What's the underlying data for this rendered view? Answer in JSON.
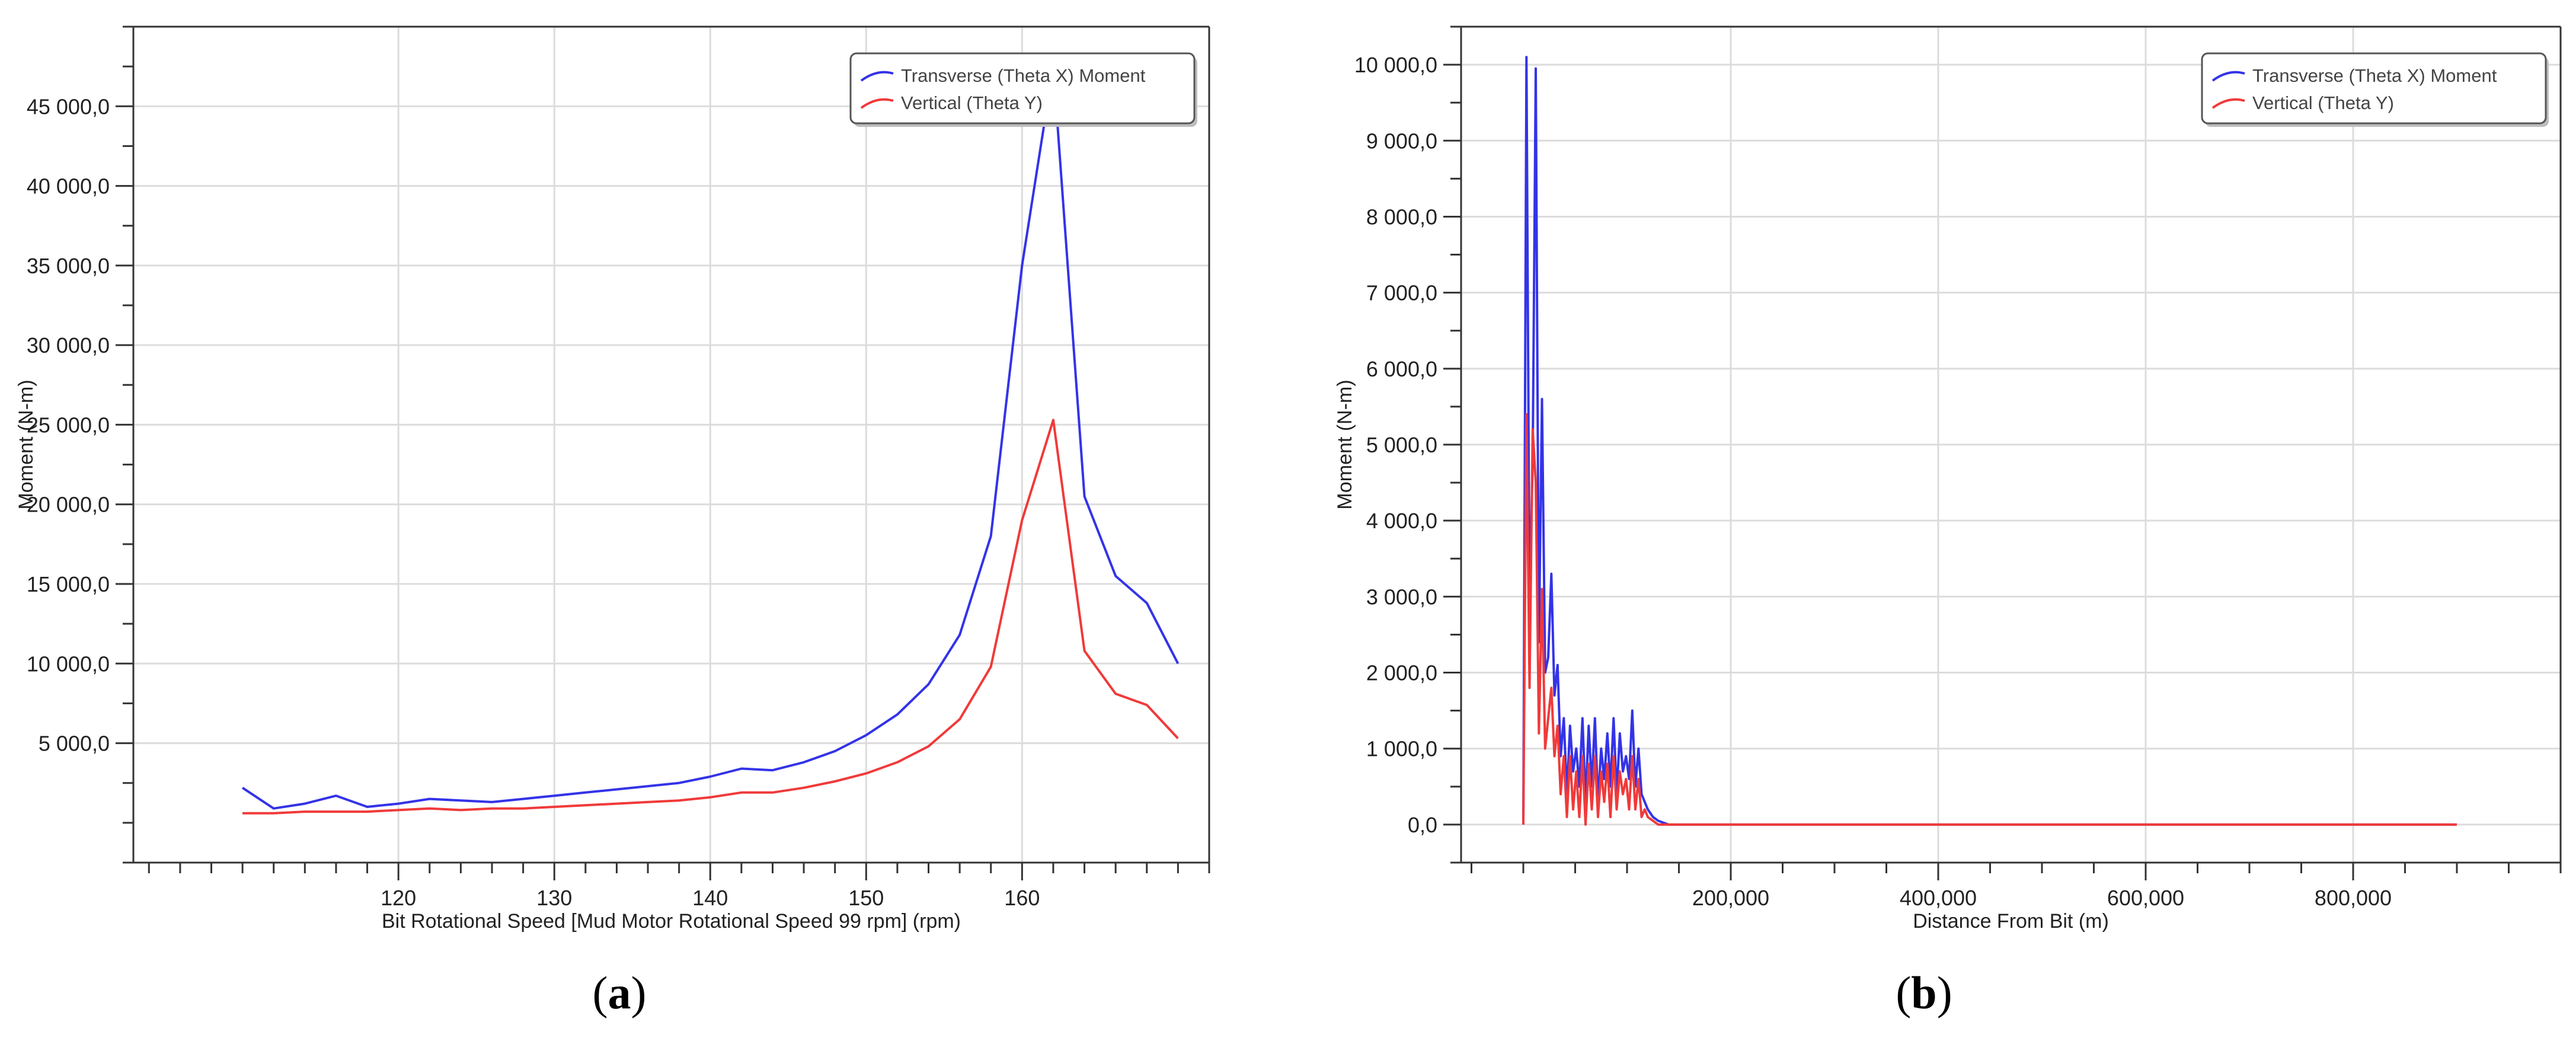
{
  "captions": {
    "a": {
      "open": "(",
      "letter": "a",
      "close": ")"
    },
    "b": {
      "open": "(",
      "letter": "b",
      "close": ")"
    }
  },
  "colors": {
    "transverse": "#3333e8",
    "vertical": "#f03a3a",
    "grid": "#dcdcdc",
    "axis": "#333333",
    "plot_bg": "#ffffff",
    "legend_border": "#555555"
  },
  "chart_data": [
    {
      "type": "line",
      "title": "",
      "xlabel": "Bit Rotational Speed [Mud Motor Rotational Speed 99 rpm] (rpm)",
      "ylabel": "Moment (N-m)",
      "xlim": [
        103,
        172
      ],
      "ylim": [
        -2500,
        50000
      ],
      "x_ticks": [
        120,
        130,
        140,
        150,
        160
      ],
      "x_tick_labels": [
        "120",
        "130",
        "140",
        "150",
        "160"
      ],
      "y_ticks": [
        5000,
        10000,
        15000,
        20000,
        25000,
        30000,
        35000,
        40000,
        45000
      ],
      "y_tick_labels": [
        "5 000,0",
        "10 000,0",
        "15 000,0",
        "20 000,0",
        "25 000,0",
        "30 000,0",
        "35 000,0",
        "40 000,0",
        "45 000,0"
      ],
      "legend_position": "top-right",
      "series": [
        {
          "name": "Transverse (Theta X) Moment",
          "color": "#3333e8",
          "x": [
            110,
            112,
            114,
            116,
            118,
            120,
            122,
            124,
            126,
            128,
            130,
            132,
            134,
            136,
            138,
            140,
            142,
            144,
            146,
            148,
            150,
            152,
            154,
            156,
            158,
            160,
            162,
            164,
            166,
            168,
            170
          ],
          "values": [
            2200,
            900,
            1200,
            1700,
            1000,
            1200,
            1500,
            1400,
            1300,
            1500,
            1700,
            1900,
            2100,
            2300,
            2500,
            2900,
            3400,
            3300,
            3800,
            4500,
            5500,
            6800,
            8700,
            11800,
            18000,
            35000,
            47500,
            20500,
            15500,
            13800,
            10000
          ]
        },
        {
          "name": "Vertical (Theta Y)",
          "color": "#f03a3a",
          "x": [
            110,
            112,
            114,
            116,
            118,
            120,
            122,
            124,
            126,
            128,
            130,
            132,
            134,
            136,
            138,
            140,
            142,
            144,
            146,
            148,
            150,
            152,
            154,
            156,
            158,
            160,
            162,
            164,
            166,
            168,
            170
          ],
          "values": [
            600,
            600,
            700,
            700,
            700,
            800,
            900,
            800,
            900,
            900,
            1000,
            1100,
            1200,
            1300,
            1400,
            1600,
            1900,
            1900,
            2200,
            2600,
            3100,
            3800,
            4800,
            6500,
            9800,
            19000,
            25300,
            10800,
            8100,
            7400,
            5300
          ]
        }
      ]
    },
    {
      "type": "line",
      "title": "",
      "xlabel": "Distance From Bit (m)",
      "ylabel": "Moment (N-m)",
      "xlim": [
        -60000,
        1000000
      ],
      "ylim": [
        -500,
        10500
      ],
      "x_ticks": [
        200000,
        400000,
        600000,
        800000
      ],
      "x_tick_labels": [
        "200,000",
        "400,000",
        "600,000",
        "800,000"
      ],
      "y_ticks": [
        0,
        1000,
        2000,
        3000,
        4000,
        5000,
        6000,
        7000,
        8000,
        9000,
        10000
      ],
      "y_tick_labels": [
        "0,0",
        "1 000,0",
        "2 000,0",
        "3 000,0",
        "4 000,0",
        "5 000,0",
        "6 000,0",
        "7 000,0",
        "8 000,0",
        "9 000,0",
        "10 000,0"
      ],
      "legend_position": "top-right",
      "series": [
        {
          "name": "Transverse (Theta X) Moment",
          "color": "#3333e8",
          "x": [
            0,
            3000,
            6000,
            9000,
            12000,
            15000,
            18000,
            21000,
            24000,
            27000,
            30000,
            33000,
            36000,
            39000,
            42000,
            45000,
            48000,
            51000,
            54000,
            57000,
            60000,
            63000,
            66000,
            69000,
            72000,
            75000,
            78000,
            81000,
            84000,
            87000,
            90000,
            93000,
            96000,
            99000,
            102000,
            105000,
            108000,
            111000,
            114000,
            117000,
            120000,
            125000,
            130000,
            140000,
            150000,
            300000,
            500000,
            700000,
            900000
          ],
          "values": [
            0,
            10100,
            2900,
            4800,
            9950,
            2400,
            5600,
            2000,
            2200,
            3300,
            1700,
            2100,
            900,
            1400,
            400,
            1300,
            700,
            1000,
            500,
            1400,
            300,
            1300,
            500,
            1400,
            300,
            1000,
            600,
            1200,
            500,
            1400,
            400,
            1200,
            700,
            900,
            600,
            1500,
            500,
            1000,
            400,
            300,
            200,
            100,
            50,
            0,
            0,
            0,
            0,
            0,
            0
          ]
        },
        {
          "name": "Vertical (Theta Y)",
          "color": "#f03a3a",
          "x": [
            0,
            3000,
            6000,
            9000,
            12000,
            15000,
            18000,
            21000,
            24000,
            27000,
            30000,
            33000,
            36000,
            39000,
            42000,
            45000,
            48000,
            51000,
            54000,
            57000,
            60000,
            63000,
            66000,
            69000,
            72000,
            75000,
            78000,
            81000,
            84000,
            87000,
            90000,
            93000,
            96000,
            99000,
            102000,
            105000,
            108000,
            111000,
            114000,
            117000,
            120000,
            125000,
            130000,
            140000,
            150000,
            300000,
            500000,
            700000,
            900000
          ],
          "values": [
            0,
            5400,
            1800,
            5200,
            4500,
            1200,
            3100,
            1000,
            1400,
            1800,
            900,
            1300,
            400,
            900,
            100,
            900,
            200,
            700,
            100,
            900,
            0,
            800,
            200,
            900,
            100,
            700,
            300,
            800,
            100,
            900,
            200,
            700,
            400,
            600,
            200,
            900,
            200,
            600,
            100,
            200,
            100,
            50,
            0,
            0,
            0,
            0,
            0,
            0,
            0
          ]
        }
      ]
    }
  ]
}
